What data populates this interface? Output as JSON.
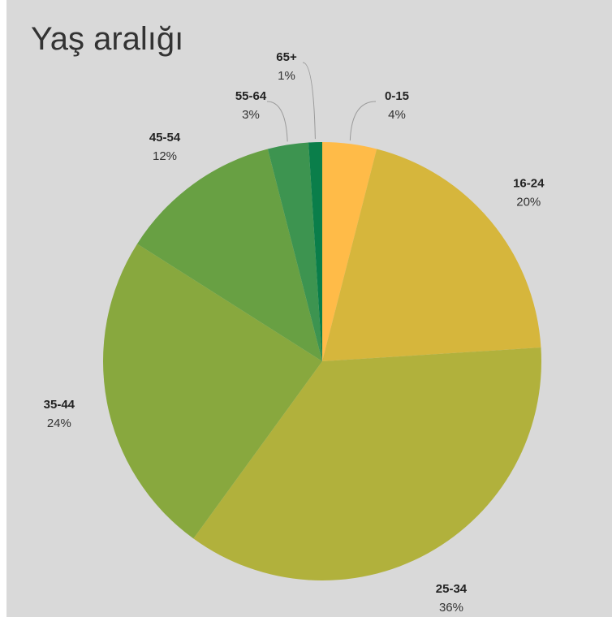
{
  "chart_data": {
    "type": "pie",
    "title": "Yaş aralığı",
    "categories": [
      "0-15",
      "16-24",
      "25-34",
      "35-44",
      "45-54",
      "55-64",
      "65+"
    ],
    "values": [
      4,
      20,
      36,
      24,
      12,
      3,
      1
    ],
    "value_labels": [
      "4%",
      "20%",
      "36%",
      "24%",
      "12%",
      "3%",
      "1%"
    ],
    "colors": [
      "#ffbb48",
      "#d6b63c",
      "#b1b13c",
      "#88a83e",
      "#68a043",
      "#3d9450",
      "#0a7e4a"
    ],
    "background": "#d9d9d9",
    "legend": "none"
  }
}
